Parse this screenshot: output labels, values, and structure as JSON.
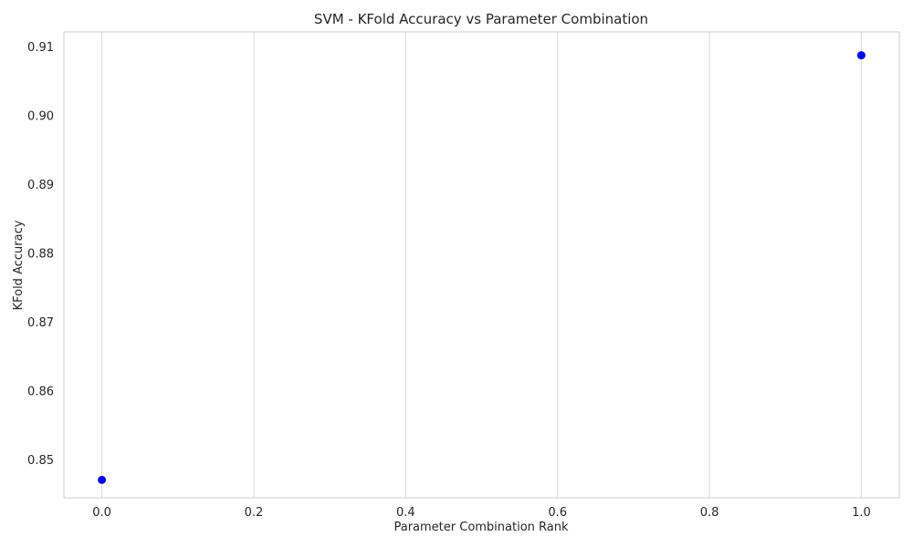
{
  "chart_data": {
    "type": "scatter",
    "title": "SVM - KFold Accuracy vs Parameter Combination",
    "xlabel": "Parameter Combination Rank",
    "ylabel": "KFold Accuracy",
    "xlim": [
      -0.05,
      1.05
    ],
    "ylim": [
      0.8445,
      0.9122
    ],
    "x_ticks": [
      0.0,
      0.2,
      0.4,
      0.6,
      0.8,
      1.0
    ],
    "x_tick_labels": [
      "0.0",
      "0.2",
      "0.4",
      "0.6",
      "0.8",
      "1.0"
    ],
    "y_ticks": [
      0.85,
      0.86,
      0.87,
      0.88,
      0.89,
      0.9,
      0.91
    ],
    "y_tick_labels": [
      "0.85",
      "0.86",
      "0.87",
      "0.88",
      "0.89",
      "0.90",
      "0.91"
    ],
    "grid": true,
    "grid_axis": "x",
    "series": [
      {
        "x": [
          0,
          1
        ],
        "y": [
          0.8471,
          0.9088
        ],
        "color": "#0000ff"
      }
    ],
    "colors": {
      "grid": "#d9d9d9",
      "spine": "#cccccc",
      "text": "#262626",
      "background": "#ffffff"
    }
  }
}
